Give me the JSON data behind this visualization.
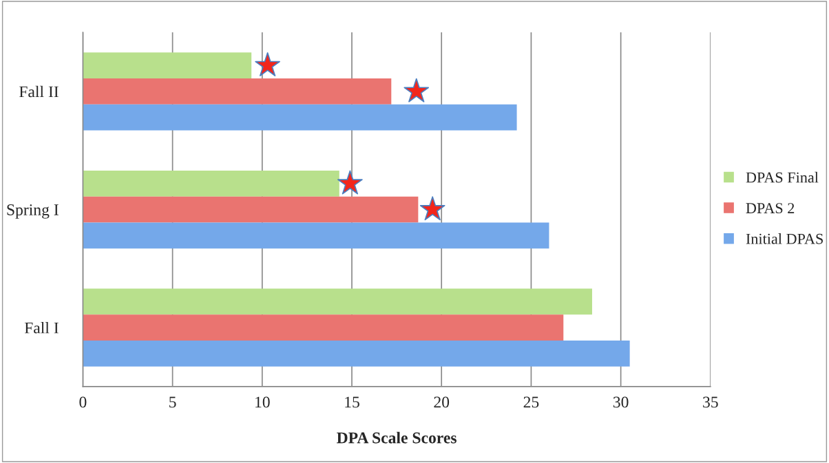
{
  "chart_data": {
    "type": "bar",
    "orientation": "horizontal",
    "xlabel": "DPA Scale Scores",
    "categories": [
      "Fall II",
      "Spring I",
      "Fall I"
    ],
    "series": [
      {
        "name": "DPAS Final",
        "color": "#b8e08c",
        "values": [
          9.4,
          14.3,
          28.4
        ]
      },
      {
        "name": "DPAS 2",
        "color": "#ea7470",
        "values": [
          17.2,
          18.7,
          26.8
        ]
      },
      {
        "name": "Initial DPAS",
        "color": "#74a8ea",
        "values": [
          24.2,
          26.0,
          30.5
        ]
      },
      {
        "type": "scatter",
        "color": "#f2261c",
        "marker": "star",
        "values": [
          10.3,
          14.9,
          null
        ]
      },
      {
        "type": "scatter",
        "color": "#f2261c",
        "marker": "star",
        "values": [
          18.6,
          19.5,
          null
        ]
      }
    ],
    "xlim": [
      0,
      35
    ],
    "xticks": [
      0,
      5,
      10,
      15,
      20,
      25,
      30,
      35
    ],
    "grid": "x",
    "legend": "right"
  }
}
